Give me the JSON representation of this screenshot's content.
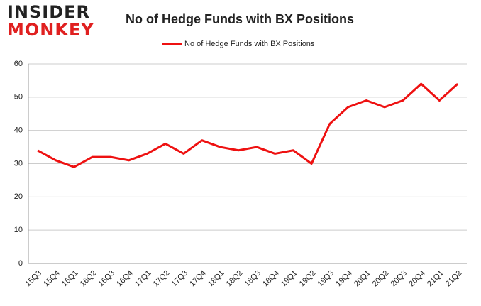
{
  "logo": {
    "line1": "INSIDER",
    "line2": "MONKEY"
  },
  "chart_data": {
    "type": "line",
    "title": "No of Hedge Funds with BX Positions",
    "categories": [
      "15Q3",
      "15Q4",
      "16Q1",
      "16Q2",
      "16Q3",
      "16Q4",
      "17Q1",
      "17Q2",
      "17Q3",
      "17Q4",
      "18Q1",
      "18Q2",
      "18Q3",
      "18Q4",
      "19Q1",
      "19Q2",
      "19Q3",
      "19Q4",
      "20Q1",
      "20Q2",
      "20Q3",
      "20Q4",
      "21Q1",
      "21Q2"
    ],
    "series": [
      {
        "name": "No of Hedge Funds with BX Positions",
        "color": "#ee1111",
        "values": [
          34,
          31,
          29,
          32,
          32,
          31,
          33,
          36,
          33,
          37,
          35,
          34,
          35,
          33,
          34,
          30,
          42,
          47,
          49,
          47,
          49,
          54,
          49,
          54
        ]
      }
    ],
    "ylim": [
      0,
      60
    ],
    "yticks": [
      0,
      10,
      20,
      30,
      40,
      50,
      60
    ],
    "grid": true,
    "legend": "top"
  }
}
